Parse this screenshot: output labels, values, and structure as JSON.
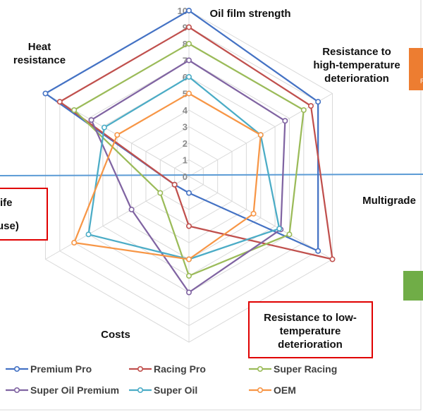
{
  "chart_data": {
    "type": "radar",
    "axes": [
      "Oil film strength",
      "Resistance to high-temperature deterioration",
      "Multigrade",
      "Resistance to low-temperature deterioration",
      "Costs",
      "Heat resistance"
    ],
    "axis_label_lines": [
      [
        "Oil film strength"
      ],
      [
        "Resistance to",
        "high-temperature",
        "deterioration"
      ],
      [
        "Multigrade"
      ],
      [
        "Resistance to low-",
        "temperature",
        "deterioration"
      ],
      [
        "Costs"
      ],
      [
        "Heat",
        "resistance"
      ]
    ],
    "ticks": [
      "0",
      "1",
      "2",
      "3",
      "4",
      "5",
      "6",
      "7",
      "8",
      "9",
      "10"
    ],
    "rmax": 10,
    "series": [
      {
        "name": "Premium Pro",
        "color": "#4472C4",
        "values": [
          10,
          9,
          9,
          1,
          1,
          10
        ]
      },
      {
        "name": "Racing Pro",
        "color": "#C0504D",
        "values": [
          9,
          8.5,
          10,
          3,
          1,
          9
        ]
      },
      {
        "name": "Super Racing",
        "color": "#9BBB59",
        "values": [
          8,
          8,
          7,
          6,
          2,
          8
        ]
      },
      {
        "name": "Super Oil Premium",
        "color": "#8064A2",
        "values": [
          7,
          6.7,
          6.4,
          7,
          4,
          6.8
        ]
      },
      {
        "name": "Super Oil",
        "color": "#4BACC6",
        "values": [
          6,
          5,
          6.3,
          5,
          7,
          5.9
        ]
      },
      {
        "name": "OEM",
        "color": "#F79646",
        "values": [
          5,
          5,
          4.5,
          5,
          8,
          5
        ]
      }
    ]
  },
  "side_text": {
    "left_box_line1": "ife",
    "left_box_line2": "use)",
    "right_box_text": "R"
  }
}
